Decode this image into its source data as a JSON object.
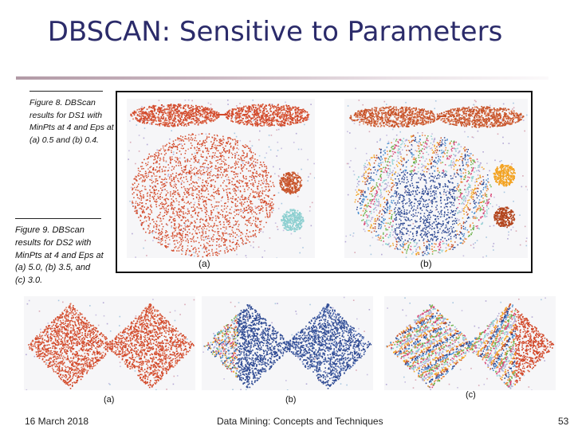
{
  "slide": {
    "title": "DBSCAN: Sensitive to Parameters"
  },
  "figure8": {
    "caption_lines": [
      "Figure 8. DBScan",
      "results for DS1 with",
      "MinPts at 4 and Eps at",
      "(a) 0.5 and (b) 0.4."
    ],
    "panels": [
      {
        "label": "(a)"
      },
      {
        "label": "(b)"
      }
    ]
  },
  "figure9": {
    "caption_lines": [
      "Figure 9. DBScan",
      "results for DS2 with",
      "MinPts at 4 and Eps at",
      "(a) 5.0, (b) 3.5, and",
      "(c) 3.0."
    ],
    "panels": [
      {
        "label": "(a)"
      },
      {
        "label": "(b)"
      },
      {
        "label": "(c)"
      }
    ]
  },
  "colors": {
    "title": "#2b2b6a",
    "cluster_red": "#d2492a",
    "cluster_orange_red": "#c8542a",
    "cluster_blue": "#2e4a93",
    "cluster_teal": "#8ccfd0",
    "cluster_gold": "#f3a322",
    "cluster_brown": "#b2441c",
    "noise_lavender": "#b5a9d5"
  },
  "footer": {
    "date": "16 March 2018",
    "center": "Data Mining: Concepts and Techniques",
    "page": "53"
  }
}
